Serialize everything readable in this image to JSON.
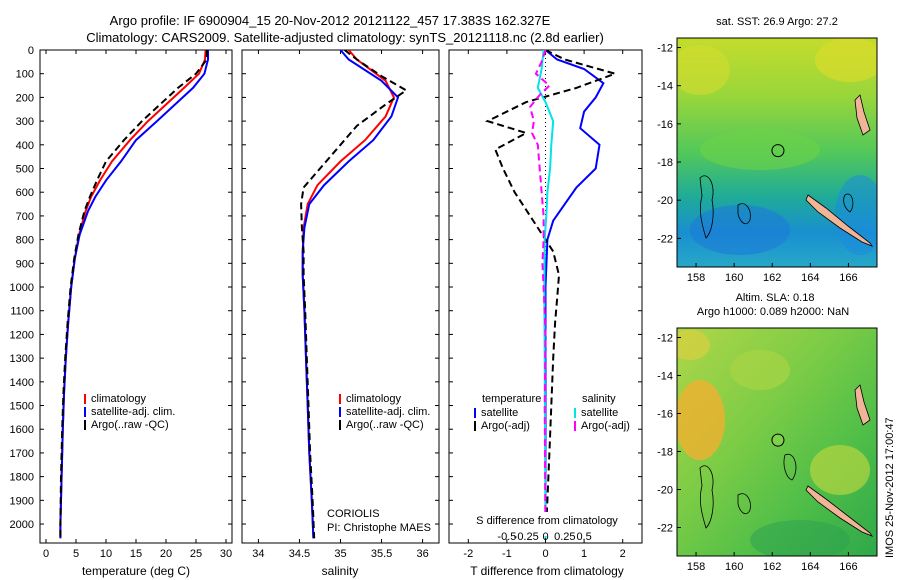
{
  "header": {
    "title_line1": "Argo profile: IF 6900904_15 20-Nov-2012 20121122_457 17.383S 162.327E",
    "title_line2": "Climatology: CARS2009. Satellite-adjusted climatology: synTS_20121118.nc (2.8d earlier)"
  },
  "colors": {
    "climatology": "#ff0000",
    "satellite": "#0000ff",
    "argo": "#000000",
    "sal_satellite": "#00e5e5",
    "sal_argo": "#ff00ff"
  },
  "chart_data": [
    {
      "type": "line",
      "xlabel": "temperature (deg C)",
      "ylabel": "",
      "xlim": [
        -1,
        31
      ],
      "ylim": [
        2080,
        0
      ],
      "xticks": [
        0,
        5,
        10,
        15,
        20,
        25,
        30
      ],
      "yticks": [
        0,
        100,
        200,
        300,
        400,
        500,
        600,
        700,
        800,
        900,
        1000,
        1100,
        1200,
        1300,
        1400,
        1500,
        1600,
        1700,
        1800,
        1900,
        2000
      ],
      "legend": [
        "climatology",
        "satellite-adj. clim.",
        "Argo(..raw -QC)"
      ],
      "series": [
        {
          "name": "climatology",
          "color": "#ff0000",
          "dash": "",
          "points": [
            [
              26.6,
              0
            ],
            [
              26.5,
              40
            ],
            [
              25.5,
              100
            ],
            [
              23,
              160
            ],
            [
              20,
              230
            ],
            [
              17,
              300
            ],
            [
              14,
              380
            ],
            [
              11,
              470
            ],
            [
              9,
              550
            ],
            [
              7.5,
              620
            ],
            [
              6.6,
              680
            ],
            [
              5.5,
              780
            ],
            [
              4.8,
              880
            ],
            [
              4.2,
              1000
            ],
            [
              3.7,
              1150
            ],
            [
              3.3,
              1300
            ],
            [
              3.0,
              1450
            ],
            [
              2.8,
              1600
            ],
            [
              2.6,
              1800
            ],
            [
              2.4,
              2000
            ],
            [
              2.4,
              2060
            ]
          ]
        },
        {
          "name": "satellite-adj. clim.",
          "color": "#0000ff",
          "dash": "",
          "points": [
            [
              27,
              0
            ],
            [
              27,
              40
            ],
            [
              26.4,
              100
            ],
            [
              24.5,
              160
            ],
            [
              21.5,
              230
            ],
            [
              18.5,
              300
            ],
            [
              15,
              380
            ],
            [
              12.5,
              470
            ],
            [
              10,
              550
            ],
            [
              8.2,
              620
            ],
            [
              7,
              680
            ],
            [
              5.6,
              780
            ],
            [
              4.8,
              880
            ],
            [
              4.2,
              1000
            ],
            [
              3.7,
              1150
            ],
            [
              3.3,
              1300
            ],
            [
              3.0,
              1450
            ],
            [
              2.8,
              1600
            ],
            [
              2.6,
              1800
            ],
            [
              2.4,
              2000
            ],
            [
              2.4,
              2060
            ]
          ]
        },
        {
          "name": "Argo(..raw -QC)",
          "color": "#000000",
          "dash": "7,4",
          "points": [
            [
              26.8,
              0
            ],
            [
              26.8,
              40
            ],
            [
              25,
              100
            ],
            [
              22,
              160
            ],
            [
              19,
              230
            ],
            [
              16,
              300
            ],
            [
              13,
              380
            ],
            [
              10,
              470
            ],
            [
              8.5,
              550
            ],
            [
              7.3,
              620
            ],
            [
              6.4,
              680
            ],
            [
              5.4,
              780
            ],
            [
              4.7,
              880
            ],
            [
              4.1,
              1000
            ],
            [
              3.6,
              1150
            ],
            [
              3.2,
              1300
            ],
            [
              2.9,
              1450
            ],
            [
              2.7,
              1600
            ],
            [
              2.5,
              1800
            ],
            [
              2.4,
              2000
            ],
            [
              2.4,
              2060
            ]
          ]
        }
      ]
    },
    {
      "type": "line",
      "xlabel": "salinity",
      "xlim": [
        33.8,
        36.2
      ],
      "ylim": [
        2080,
        0
      ],
      "xticks": [
        34,
        34.5,
        35,
        35.5,
        36
      ],
      "legend": [
        "climatology",
        "satellite-adj. clim.",
        "Argo(..raw -QC)"
      ],
      "annotation": [
        "CORIOLIS",
        "PI: Christophe MAES"
      ],
      "series": [
        {
          "name": "climatology",
          "color": "#ff0000",
          "dash": "",
          "points": [
            [
              35.1,
              0
            ],
            [
              35.2,
              40
            ],
            [
              35.55,
              130
            ],
            [
              35.65,
              200
            ],
            [
              35.55,
              280
            ],
            [
              35.3,
              380
            ],
            [
              35,
              470
            ],
            [
              34.72,
              570
            ],
            [
              34.6,
              650
            ],
            [
              34.55,
              750
            ],
            [
              34.54,
              850
            ],
            [
              34.54,
              950
            ],
            [
              34.56,
              1100
            ],
            [
              34.58,
              1300
            ],
            [
              34.6,
              1500
            ],
            [
              34.62,
              1700
            ],
            [
              34.65,
              1900
            ],
            [
              34.67,
              2060
            ]
          ]
        },
        {
          "name": "satellite-adj. clim.",
          "color": "#0000ff",
          "dash": "",
          "points": [
            [
              35,
              0
            ],
            [
              35.1,
              40
            ],
            [
              35.5,
              130
            ],
            [
              35.7,
              200
            ],
            [
              35.62,
              280
            ],
            [
              35.4,
              380
            ],
            [
              35.1,
              470
            ],
            [
              34.8,
              570
            ],
            [
              34.62,
              650
            ],
            [
              34.56,
              750
            ],
            [
              34.54,
              850
            ],
            [
              34.54,
              950
            ],
            [
              34.56,
              1100
            ],
            [
              34.58,
              1300
            ],
            [
              34.6,
              1500
            ],
            [
              34.62,
              1700
            ],
            [
              34.65,
              1900
            ],
            [
              34.67,
              2060
            ]
          ]
        },
        {
          "name": "Argo(..raw -QC)",
          "color": "#000000",
          "dash": "7,4",
          "points": [
            [
              35.05,
              0
            ],
            [
              35.2,
              40
            ],
            [
              35.5,
              110
            ],
            [
              35.8,
              170
            ],
            [
              35.55,
              230
            ],
            [
              35.2,
              320
            ],
            [
              35,
              400
            ],
            [
              34.8,
              480
            ],
            [
              34.55,
              580
            ],
            [
              34.52,
              650
            ],
            [
              34.53,
              750
            ],
            [
              34.55,
              850
            ],
            [
              34.55,
              950
            ],
            [
              34.57,
              1100
            ],
            [
              34.59,
              1300
            ],
            [
              34.61,
              1500
            ],
            [
              34.63,
              1700
            ],
            [
              34.66,
              1900
            ],
            [
              34.68,
              2060
            ]
          ]
        }
      ]
    },
    {
      "type": "line",
      "xlabel": "T difference from climatology",
      "xlabel_top": "S difference from climatology",
      "xlim": [
        -2.5,
        2.5
      ],
      "ylim": [
        2080,
        0
      ],
      "xticks": [
        -2,
        -1,
        0,
        1,
        2
      ],
      "xticks_top_labels": [
        "-0.5",
        "-0.25",
        "0",
        "0.25",
        "0.5"
      ],
      "legend_temperature": {
        "title": "temperature",
        "items": [
          "satellite",
          "Argo(-adj)"
        ]
      },
      "legend_salinity": {
        "title": "salinity",
        "items": [
          "satellite",
          "Argo(-adj)"
        ]
      },
      "series": [
        {
          "name": "temperature satellite",
          "color": "#0000ff",
          "dash": "",
          "points": [
            [
              0,
              0
            ],
            [
              0.3,
              40
            ],
            [
              1,
              80
            ],
            [
              1.5,
              140
            ],
            [
              1.3,
              200
            ],
            [
              1,
              260
            ],
            [
              0.9,
              330
            ],
            [
              1.4,
              400
            ],
            [
              1.3,
              500
            ],
            [
              0.8,
              580
            ],
            [
              0.5,
              650
            ],
            [
              0.2,
              720
            ],
            [
              0.05,
              800
            ],
            [
              0,
              1000
            ],
            [
              0,
              2060
            ]
          ]
        },
        {
          "name": "temperature Argo(-adj)",
          "color": "#000000",
          "dash": "7,4",
          "points": [
            [
              0,
              0
            ],
            [
              0.5,
              40
            ],
            [
              1.8,
              100
            ],
            [
              0.8,
              160
            ],
            [
              -0.5,
              220
            ],
            [
              -1.5,
              300
            ],
            [
              -0.5,
              350
            ],
            [
              -1.3,
              420
            ],
            [
              -1.1,
              500
            ],
            [
              -0.8,
              600
            ],
            [
              -0.4,
              700
            ],
            [
              0.2,
              850
            ],
            [
              0.35,
              950
            ],
            [
              0.3,
              1050
            ],
            [
              0.25,
              1150
            ],
            [
              0.2,
              1300
            ],
            [
              0.15,
              1500
            ],
            [
              0.1,
              1700
            ],
            [
              0.05,
              1900
            ],
            [
              0,
              2060
            ]
          ]
        },
        {
          "name": "salinity satellite",
          "color": "#00e5e5",
          "dash": "",
          "points": [
            [
              -0.05,
              0
            ],
            [
              -0.1,
              80
            ],
            [
              -0.2,
              160
            ],
            [
              0,
              220
            ],
            [
              0.2,
              300
            ],
            [
              0.15,
              400
            ],
            [
              0.12,
              500
            ],
            [
              0.05,
              600
            ],
            [
              0.02,
              700
            ],
            [
              -0.02,
              800
            ],
            [
              -0.03,
              1000
            ],
            [
              -0.02,
              1300
            ],
            [
              0,
              2060
            ]
          ]
        },
        {
          "name": "salinity Argo(-adj)",
          "color": "#ff00ff",
          "dash": "7,4",
          "points": [
            [
              0,
              0
            ],
            [
              -0.1,
              50
            ],
            [
              -0.25,
              100
            ],
            [
              0.1,
              150
            ],
            [
              -0.15,
              190
            ],
            [
              -0.4,
              240
            ],
            [
              -0.3,
              300
            ],
            [
              -0.35,
              350
            ],
            [
              -0.2,
              400
            ],
            [
              -0.15,
              500
            ],
            [
              -0.1,
              600
            ],
            [
              -0.05,
              700
            ],
            [
              -0.05,
              800
            ],
            [
              -0.08,
              900
            ],
            [
              -0.05,
              1000
            ],
            [
              0,
              1200
            ],
            [
              -0.02,
              1500
            ],
            [
              0,
              2060
            ]
          ]
        }
      ]
    },
    {
      "type": "heatmap",
      "title": "sat. SST: 26.9 Argo: 27.2",
      "xlim": [
        157,
        167.5
      ],
      "ylim": [
        -23.5,
        -11.5
      ],
      "xticks": [
        158,
        160,
        162,
        164,
        166
      ],
      "yticks": [
        -12,
        -14,
        -16,
        -18,
        -20,
        -22
      ],
      "marker": [
        162.3,
        -17.4
      ]
    },
    {
      "type": "heatmap",
      "title_line1": "Altim. SLA: 0.18",
      "title_line2": "Argo h1000: 0.089 h2000: NaN",
      "xlim": [
        157,
        167.5
      ],
      "ylim": [
        -23.5,
        -11.5
      ],
      "xticks": [
        158,
        160,
        162,
        164,
        166
      ],
      "yticks": [
        -12,
        -14,
        -16,
        -18,
        -20,
        -22
      ],
      "marker": [
        162.3,
        -17.4
      ]
    }
  ],
  "footer": {
    "stamp": "IMOS 25-Nov-2012 17:00:47"
  }
}
